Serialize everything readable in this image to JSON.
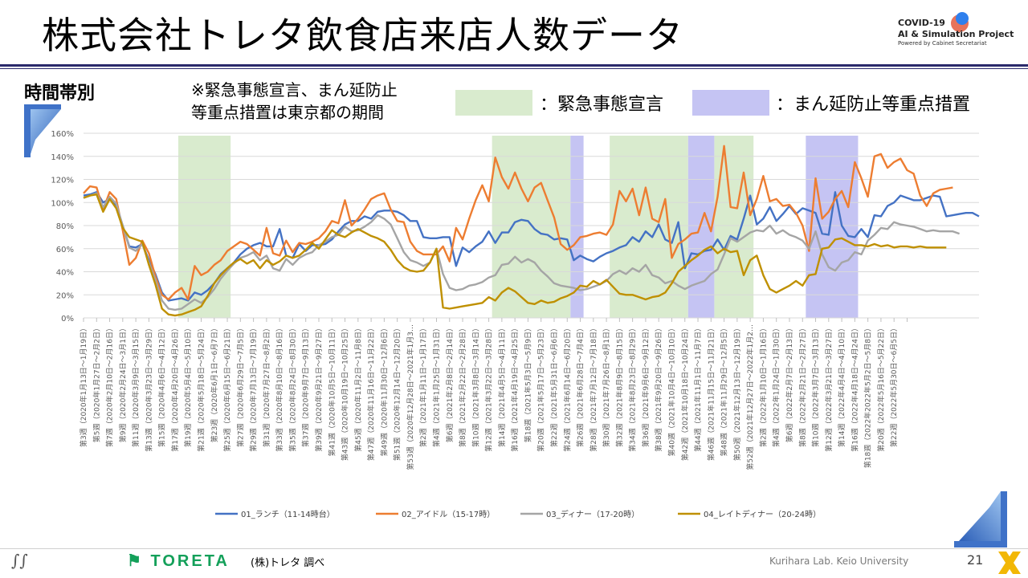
{
  "header": {
    "title": "株式会社トレタ飲食店来店人数データ",
    "logo_line1": "COVID-19",
    "logo_line2": "AI & Simulation Project",
    "logo_line3": "Powered by Cabinet Secretariat"
  },
  "subtitle": "時間帯別",
  "note_line1": "※緊急事態宣言、まん延防止",
  "note_line2": "等重点措置は東京都の期間",
  "legend_shading": {
    "emergency": "：緊急事態宣言",
    "priority": "：まん延防止等重点措置",
    "emergency_color": "#d9ebce",
    "priority_color": "#c5c4f3"
  },
  "footer": {
    "company": "TORETA",
    "source": "(株)トレタ 調べ",
    "lab": "Kurihara Lab. Keio University",
    "page": "21"
  },
  "chart_data": {
    "type": "line",
    "ylim": [
      0,
      160
    ],
    "yticks": [
      "0%",
      "20%",
      "40%",
      "60%",
      "80%",
      "100%",
      "120%",
      "140%",
      "160%"
    ],
    "grid": true,
    "legend_position": "bottom",
    "x_labels": [
      "第3週（2020年1月13日～1月19日）",
      "第5週（2020年1月27日～2月2日）",
      "第7週（2020年2月10日～2月16日）",
      "第9週（2020年2月24日～3月1日）",
      "第11週（2020年3月9日～3月15日）",
      "第13週（2020年3月23日～3月29日）",
      "第15週（2020年4月6日～4月12日）",
      "第17週（2020年4月20日～4月26日）",
      "第19週（2020年5月4日～5月10日）",
      "第21週（2020年5月18日～5月24日）",
      "第23週（2020年6月1日～6月7日）",
      "第25週（2020年6月15日～6月21日）",
      "第27週（2020年6月29日～7月5日）",
      "第29週（2020年7月13日～7月19日）",
      "第31週（2020年7月27日～8月2日）",
      "第33週（2020年8月10日～8月16日）",
      "第35週（2020年8月24日～8月30日）",
      "第37週（2020年9月7日～9月13日）",
      "第39週（2020年9月21日～9月27日）",
      "第41週（2020年10月5日～10月11日）",
      "第43週（2020年10月19日～10月25日）",
      "第45週（2020年11月2日～11月8日）",
      "第47週（2020年11月16日～11月22日）",
      "第49週（2020年11月30日～12月6日）",
      "第51週（2020年12月14日～12月20日）",
      "第53週（2020年12月28日～2021年1月3…",
      "第2週（2021年1月11日～1月17日）",
      "第4週（2021年1月25日～1月31日）",
      "第6週（2021年2月8日～2月14日）",
      "第8週（2021年2月22日～2月28日）",
      "第10週（2021年3月8日～3月14日）",
      "第12週（2021年3月22日～3月28日）",
      "第14週（2021年4月5日～4月11日）",
      "第16週（2021年4月19日～4月25日）",
      "第18週（2021年5月3日～5月9日）",
      "第20週（2021年5月17日～5月23日）",
      "第22週（2021年5月31日～6月6日）",
      "第24週（2021年6月14日～6月20日）",
      "第26週（2021年6月28日～7月4日）",
      "第28週（2021年7月12日～7月18日）",
      "第30週（2021年7月26日～8月1日）",
      "第32週（2021年8月9日～8月15日）",
      "第34週（2021年8月23日～8月29日）",
      "第36週（2021年9月6日～9月12日）",
      "第38週（2021年9月20日～9月26日）",
      "第40週（2021年10月4日～10月10日）",
      "第42週（2021年10月18日～10月24日）",
      "第44週（2021年11月1日～11月7日）",
      "第46週（2021年11月15日～11月21日）",
      "第48週（2021年11月29日～12月5日）",
      "第50週（2021年12月13日～12月19日）",
      "第52週（2021年12月27日～2022年1月2…",
      "第2週（2022年1月10日～1月16日）",
      "第4週（2022年1月24日～1月30日）",
      "第6週（2022年2月7日～2月13日）",
      "第8週（2022年2月21日～2月27日）",
      "第10週（2022年3月7日～3月13日）",
      "第12週（2022年3月21日～3月27日）",
      "第14週（2022年4月4日～4月10日）",
      "第16週（2022年4月18日～4月24日）",
      "第18週（2022年2022年5月2日～5月8日）",
      "第20週（2022年5月16日～5月22日）",
      "第22週（2022年5月30日～6月5日）"
    ],
    "emergency_periods": [
      [
        14.5,
        22.5
      ],
      [
        62.5,
        74.5
      ],
      [
        80.5,
        92.5
      ],
      [
        96.5,
        102.5
      ]
    ],
    "priority_periods": [
      [
        74.5,
        76.5
      ],
      [
        92.5,
        96.5
      ],
      [
        110.5,
        118.5
      ]
    ],
    "series": [
      {
        "name": "01_ランチ（11-14時台）",
        "color": "#4472c4",
        "values": [
          106,
          107,
          109,
          100,
          103,
          97,
          80,
          62,
          61,
          64,
          50,
          38,
          22,
          15,
          16,
          17,
          15,
          22,
          20,
          24,
          30,
          38,
          43,
          48,
          55,
          60,
          63,
          65,
          62,
          62,
          77,
          54,
          52,
          64,
          58,
          63,
          63,
          64,
          68,
          75,
          81,
          84,
          84,
          88,
          86,
          92,
          93,
          93,
          92,
          89,
          84,
          84,
          70,
          69,
          69,
          70,
          70,
          45,
          61,
          57,
          62,
          66,
          75,
          65,
          74,
          74,
          83,
          85,
          84,
          77,
          73,
          72,
          68,
          69,
          68,
          50,
          54,
          51,
          49,
          53,
          56,
          58,
          61,
          63,
          70,
          66,
          75,
          70,
          81,
          68,
          65,
          83,
          43,
          56,
          55,
          58,
          59,
          68,
          59,
          71,
          68,
          86,
          106,
          81,
          86,
          96,
          84,
          90,
          97,
          90,
          95,
          93,
          91,
          73,
          72,
          109,
          80,
          71,
          70,
          77,
          70,
          89,
          88,
          97,
          100,
          106,
          104,
          102,
          102,
          104,
          106,
          105,
          88,
          89,
          90,
          91,
          91,
          88
        ]
      },
      {
        "name": "02_アイドル（15-17時）",
        "color": "#ed7d31",
        "values": [
          108,
          114,
          113,
          94,
          109,
          103,
          76,
          46,
          52,
          67,
          56,
          36,
          20,
          16,
          22,
          26,
          16,
          45,
          37,
          40,
          46,
          50,
          58,
          62,
          66,
          64,
          59,
          54,
          78,
          56,
          54,
          67,
          57,
          65,
          64,
          66,
          69,
          75,
          84,
          82,
          102,
          80,
          86,
          94,
          103,
          106,
          108,
          94,
          84,
          83,
          66,
          58,
          55,
          55,
          55,
          62,
          49,
          78,
          68,
          86,
          102,
          115,
          101,
          139,
          122,
          112,
          126,
          112,
          101,
          113,
          117,
          102,
          87,
          64,
          59,
          63,
          70,
          71,
          73,
          74,
          72,
          81,
          110,
          101,
          112,
          89,
          113,
          86,
          83,
          103,
          52,
          64,
          68,
          73,
          74,
          91,
          75,
          105,
          149,
          96,
          95,
          126,
          89,
          103,
          123,
          101,
          103,
          97,
          98,
          91,
          80,
          58,
          121,
          86,
          92,
          103,
          110,
          96,
          135,
          121,
          105,
          140,
          142,
          130,
          135,
          138,
          128,
          125,
          106,
          97,
          108,
          111,
          112,
          113
        ]
      },
      {
        "name": "03_ディナー（17-20時）",
        "color": "#a5a5a5",
        "values": [
          104,
          106,
          108,
          96,
          105,
          99,
          80,
          61,
          58,
          64,
          48,
          33,
          15,
          8,
          7,
          8,
          12,
          16,
          13,
          18,
          25,
          34,
          41,
          47,
          52,
          54,
          57,
          50,
          54,
          43,
          41,
          51,
          46,
          52,
          55,
          57,
          63,
          66,
          70,
          72,
          79,
          75,
          76,
          79,
          83,
          89,
          86,
          81,
          69,
          57,
          50,
          48,
          45,
          48,
          60,
          38,
          26,
          24,
          25,
          28,
          29,
          31,
          35,
          37,
          46,
          47,
          53,
          48,
          51,
          48,
          41,
          36,
          30,
          28,
          27,
          26,
          24,
          25,
          27,
          29,
          32,
          38,
          41,
          38,
          43,
          40,
          46,
          37,
          35,
          30,
          32,
          28,
          25,
          28,
          30,
          32,
          38,
          42,
          55,
          69,
          66,
          70,
          74,
          76,
          75,
          80,
          73,
          76,
          72,
          70,
          67,
          60,
          75,
          55,
          44,
          41,
          48,
          50,
          57,
          55,
          67,
          72,
          78,
          77,
          83,
          81,
          80,
          79,
          77,
          75,
          76,
          75,
          75,
          75,
          73
        ]
      },
      {
        "name": "04_レイトディナー（20-24時）",
        "color": "#bf9000",
        "values": [
          104,
          106,
          107,
          92,
          103,
          95,
          78,
          70,
          68,
          66,
          46,
          29,
          8,
          3,
          2,
          3,
          5,
          7,
          10,
          19,
          30,
          37,
          43,
          48,
          51,
          47,
          50,
          43,
          50,
          46,
          49,
          54,
          52,
          54,
          59,
          65,
          60,
          68,
          76,
          72,
          70,
          74,
          77,
          74,
          71,
          69,
          66,
          59,
          50,
          44,
          41,
          40,
          41,
          48,
          60,
          9,
          8,
          9,
          10,
          11,
          12,
          13,
          18,
          15,
          22,
          26,
          23,
          18,
          13,
          12,
          15,
          13,
          14,
          17,
          19,
          22,
          28,
          27,
          32,
          29,
          33,
          27,
          21,
          20,
          20,
          18,
          16,
          18,
          19,
          22,
          30,
          40,
          45,
          50,
          54,
          59,
          62,
          56,
          60,
          57,
          58,
          37,
          50,
          54,
          37,
          25,
          22,
          25,
          28,
          32,
          28,
          37,
          38,
          60,
          61,
          68,
          69,
          66,
          63,
          63,
          62,
          64,
          62,
          63,
          61,
          62,
          62,
          61,
          62,
          61,
          61,
          61,
          61
        ]
      }
    ]
  }
}
